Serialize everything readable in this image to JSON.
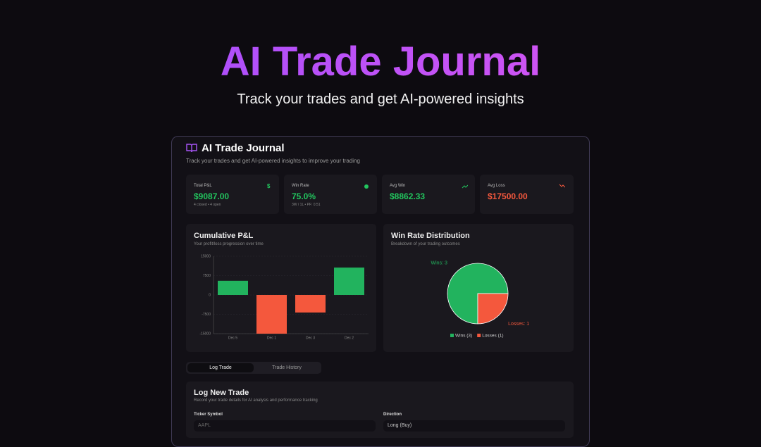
{
  "hero": {
    "title": "AI Trade Journal",
    "subtitle": "Track your trades and get AI-powered insights"
  },
  "app": {
    "title": "AI Trade Journal",
    "subtitle": "Track your trades and get AI-powered insights to improve your trading"
  },
  "stats": [
    {
      "label": "Total P&L",
      "value": "$9087.00",
      "note": "4 closed • 4 open",
      "icon": "$"
    },
    {
      "label": "Win Rate",
      "value": "75.0%",
      "note": "3W / 1L • PF: 0.51"
    },
    {
      "label": "Avg Win",
      "value": "$8862.33"
    },
    {
      "label": "Avg Loss",
      "value": "$17500.00"
    }
  ],
  "chart_data": [
    {
      "type": "bar",
      "title": "Cumulative P&L",
      "subtitle": "Your profit/loss progression over time",
      "categories": [
        "Dec 5",
        "Dec 1",
        "Dec 3",
        "Dec 2"
      ],
      "values": [
        5500,
        -15000,
        -6800,
        10600
      ],
      "positive_color": "#22b35e",
      "negative_color": "#f4583d",
      "ylim": [
        -15000,
        15000
      ],
      "yticks": [
        -15000,
        -7500,
        0,
        7500,
        15000
      ],
      "grid": true
    },
    {
      "type": "pie",
      "title": "Win Rate Distribution",
      "subtitle": "Breakdown of your trading outcomes",
      "categories": [
        "Wins (3)",
        "Losses (1)"
      ],
      "values": [
        3,
        1
      ],
      "value_labels": [
        "Wins: 3",
        "Losses: 1"
      ],
      "colors": [
        "#22b35e",
        "#f4583d"
      ]
    }
  ],
  "tabs": [
    "Log Trade",
    "Trade History"
  ],
  "form": {
    "title": "Log New Trade",
    "subtitle": "Record your trade details for AI analysis and performance tracking",
    "fields": [
      {
        "label": "Ticker Symbol",
        "placeholder": "AAPL"
      },
      {
        "label": "Direction",
        "value": "Long (Buy)"
      }
    ]
  }
}
